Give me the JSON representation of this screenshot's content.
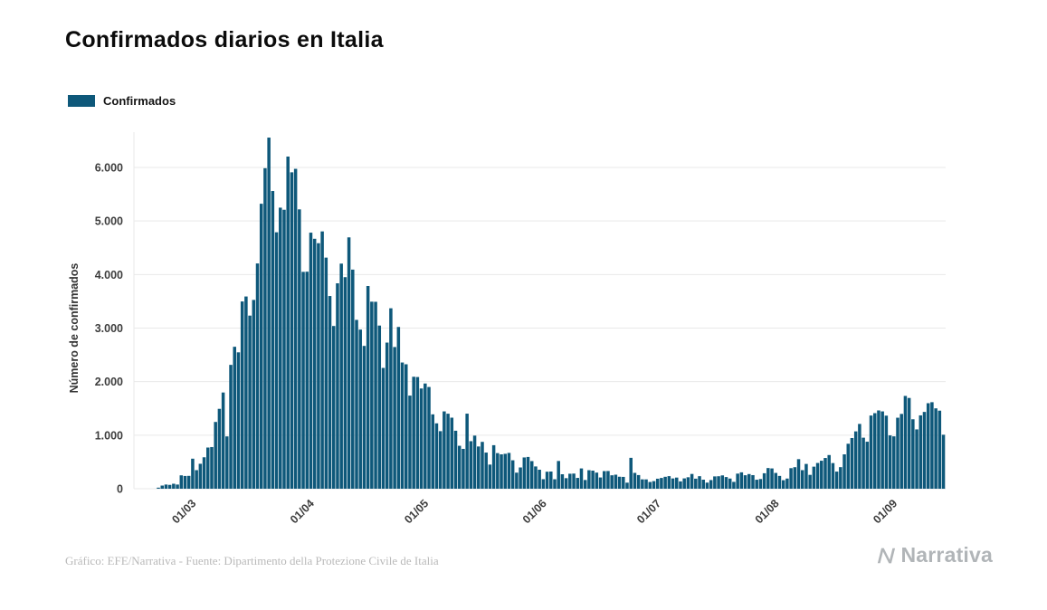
{
  "page": {
    "title": "Confirmados diarios en Italia",
    "footer_credit": "Gráfico: EFE/Narrativa - Fuente: Dipartimento della Protezione Civile de Italia",
    "brand": "Narrativa"
  },
  "legend": {
    "label": "Confirmados"
  },
  "colors": {
    "bar": "#0e587a",
    "grid": "#e9e9e9",
    "tick": "#3d3d3d",
    "axis_label": "#333333",
    "muted": "#b9b9b9"
  },
  "chart_data": {
    "type": "bar",
    "title": "Confirmados diarios en Italia",
    "xlabel": "",
    "ylabel": "Número de confirmados",
    "ylim": [
      0,
      6557
    ],
    "grid": "horizontal",
    "legend_position": "top-left",
    "series_name": "Confirmados",
    "yticks": [
      0,
      1000,
      2000,
      3000,
      4000,
      5000,
      6000
    ],
    "ytick_labels": [
      "0",
      "1.000",
      "2.000",
      "3.000",
      "4.000",
      "5.000",
      "6.000"
    ],
    "xticks": [
      {
        "label": "01/03",
        "index": 15
      },
      {
        "label": "01/04",
        "index": 46
      },
      {
        "label": "01/05",
        "index": 76
      },
      {
        "label": "01/06",
        "index": 107
      },
      {
        "label": "01/07",
        "index": 137
      },
      {
        "label": "01/08",
        "index": 168
      },
      {
        "label": "01/09",
        "index": 199
      }
    ],
    "dates": [
      "15/02",
      "16/02",
      "17/02",
      "18/02",
      "19/02",
      "20/02",
      "21/02",
      "22/02",
      "23/02",
      "24/02",
      "25/02",
      "26/02",
      "27/02",
      "28/02",
      "29/02",
      "01/03",
      "02/03",
      "03/03",
      "04/03",
      "05/03",
      "06/03",
      "07/03",
      "08/03",
      "09/03",
      "10/03",
      "11/03",
      "12/03",
      "13/03",
      "14/03",
      "15/03",
      "16/03",
      "17/03",
      "18/03",
      "19/03",
      "20/03",
      "21/03",
      "22/03",
      "23/03",
      "24/03",
      "25/03",
      "26/03",
      "27/03",
      "28/03",
      "29/03",
      "30/03",
      "31/03",
      "01/04",
      "02/04",
      "03/04",
      "04/04",
      "05/04",
      "06/04",
      "07/04",
      "08/04",
      "09/04",
      "10/04",
      "11/04",
      "12/04",
      "13/04",
      "14/04",
      "15/04",
      "16/04",
      "17/04",
      "18/04",
      "19/04",
      "20/04",
      "21/04",
      "22/04",
      "23/04",
      "24/04",
      "25/04",
      "26/04",
      "27/04",
      "28/04",
      "29/04",
      "30/04",
      "01/05",
      "02/05",
      "03/05",
      "04/05",
      "05/05",
      "06/05",
      "07/05",
      "08/05",
      "09/05",
      "10/05",
      "11/05",
      "12/05",
      "13/05",
      "14/05",
      "15/05",
      "16/05",
      "17/05",
      "18/05",
      "19/05",
      "20/05",
      "21/05",
      "22/05",
      "23/05",
      "24/05",
      "25/05",
      "26/05",
      "27/05",
      "28/05",
      "29/05",
      "30/05",
      "31/05",
      "01/06",
      "02/06",
      "03/06",
      "04/06",
      "05/06",
      "06/06",
      "07/06",
      "08/06",
      "09/06",
      "10/06",
      "11/06",
      "12/06",
      "13/06",
      "14/06",
      "15/06",
      "16/06",
      "17/06",
      "18/06",
      "19/06",
      "20/06",
      "21/06",
      "22/06",
      "23/06",
      "24/06",
      "25/06",
      "26/06",
      "27/06",
      "28/06",
      "29/06",
      "30/06",
      "01/07",
      "02/07",
      "03/07",
      "04/07",
      "05/07",
      "06/07",
      "07/07",
      "08/07",
      "09/07",
      "10/07",
      "11/07",
      "12/07",
      "13/07",
      "14/07",
      "15/07",
      "16/07",
      "17/07",
      "18/07",
      "19/07",
      "20/07",
      "21/07",
      "22/07",
      "23/07",
      "24/07",
      "25/07",
      "26/07",
      "27/07",
      "28/07",
      "29/07",
      "30/07",
      "31/07",
      "01/08",
      "02/08",
      "03/08",
      "04/08",
      "05/08",
      "06/08",
      "07/08",
      "08/08",
      "09/08",
      "10/08",
      "11/08",
      "12/08",
      "13/08",
      "14/08",
      "15/08",
      "16/08",
      "17/08",
      "18/08",
      "19/08",
      "20/08",
      "21/08",
      "22/08",
      "23/08",
      "24/08",
      "25/08",
      "26/08",
      "27/08",
      "28/08",
      "29/08",
      "30/08",
      "31/08",
      "01/09",
      "02/09",
      "03/09",
      "04/09",
      "05/09",
      "06/09",
      "07/09",
      "08/09",
      "09/09",
      "10/09",
      "11/09",
      "12/09",
      "13/09",
      "14/09"
    ],
    "values": [
      0,
      0,
      0,
      0,
      0,
      0,
      20,
      59,
      78,
      72,
      93,
      78,
      250,
      238,
      240,
      561,
      347,
      466,
      587,
      769,
      778,
      1247,
      1492,
      1797,
      977,
      2313,
      2651,
      2547,
      3497,
      3590,
      3233,
      3526,
      4207,
      5322,
      5986,
      6557,
      5560,
      4789,
      5249,
      5210,
      6203,
      5909,
      5974,
      5217,
      4050,
      4053,
      4782,
      4668,
      4585,
      4805,
      4316,
      3599,
      3039,
      3836,
      4204,
      3951,
      4694,
      4092,
      3153,
      2972,
      2667,
      3786,
      3493,
      3491,
      3047,
      2256,
      2729,
      3370,
      2646,
      3021,
      2357,
      2324,
      1739,
      2091,
      2086,
      1872,
      1965,
      1900,
      1389,
      1221,
      1075,
      1444,
      1401,
      1327,
      1083,
      802,
      744,
      1402,
      888,
      992,
      789,
      875,
      675,
      451,
      813,
      665,
      642,
      652,
      669,
      531,
      300,
      397,
      584,
      593,
      516,
      416,
      355,
      178,
      318,
      321,
      177,
      518,
      270,
      197,
      280,
      283,
      202,
      379,
      163,
      346,
      338,
      301,
      210,
      329,
      331,
      251,
      262,
      224,
      221,
      113,
      577,
      296,
      255,
      175,
      174,
      126,
      142,
      187,
      201,
      223,
      235,
      192,
      208,
      137,
      193,
      214,
      276,
      188,
      234,
      169,
      114,
      162,
      230,
      233,
      249,
      218,
      190,
      128,
      282,
      306,
      252,
      274,
      254,
      168,
      181,
      289,
      386,
      379,
      295,
      239,
      159,
      190,
      384,
      402,
      552,
      347,
      463,
      259,
      412,
      481,
      523,
      574,
      629,
      479,
      320,
      403,
      642,
      840,
      947,
      1071,
      1210,
      953,
      878,
      1367,
      1411,
      1462,
      1444,
      1365,
      996,
      978,
      1326,
      1397,
      1733,
      1695,
      1297,
      1108,
      1370,
      1434,
      1597,
      1616,
      1501,
      1458,
      1008
    ]
  }
}
